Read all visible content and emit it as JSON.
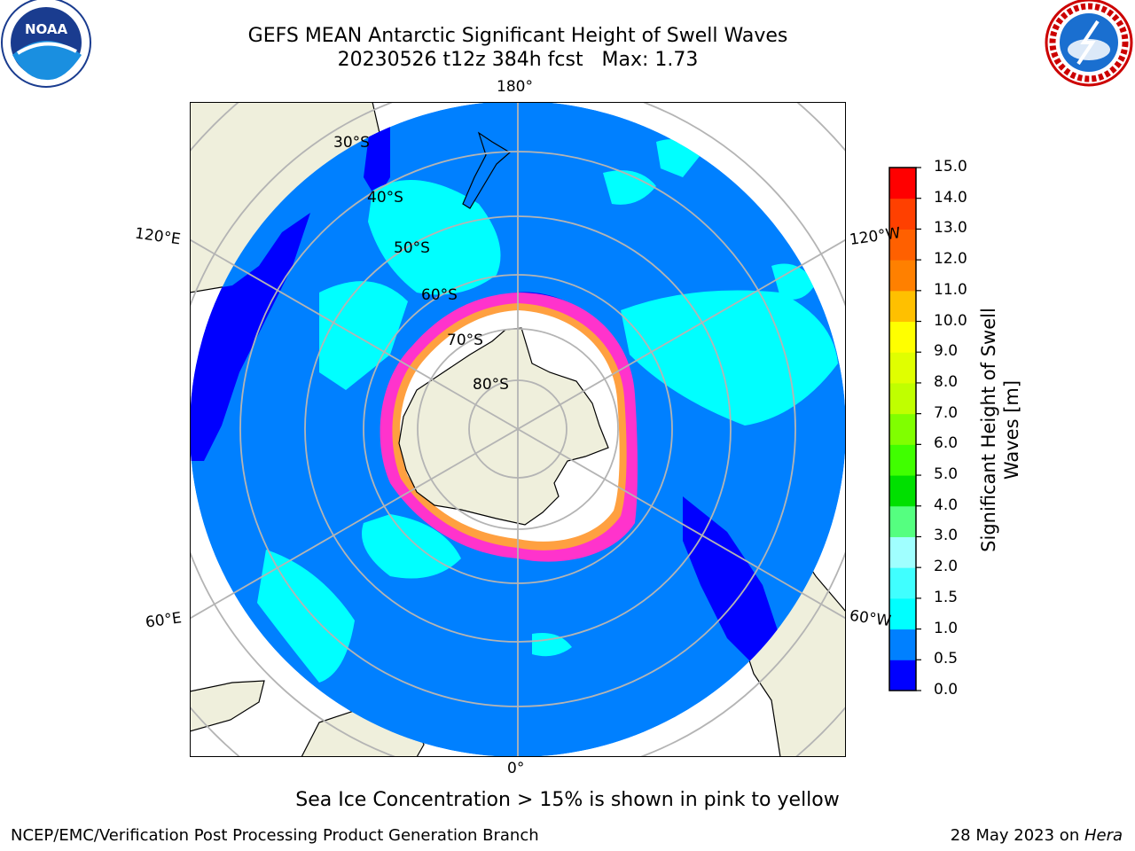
{
  "header": {
    "title_line1": "GEFS MEAN Antarctic Significant Height of Swell Waves",
    "title_line2": "20230526 t12z 384h fcst   Max: 1.73",
    "logo_left": "noaa-logo",
    "logo_right": "national-weather-service-logo"
  },
  "map": {
    "projection": "south-polar-stereographic",
    "lon_labels": {
      "top": "180°",
      "bottom": "0°",
      "upper_left": "120°E",
      "upper_right": "120°W",
      "lower_left": "60°E",
      "lower_right": "60°W"
    },
    "lat_labels": [
      "30°S",
      "40°S",
      "50°S",
      "60°S",
      "70°S",
      "80°S"
    ],
    "colors": {
      "land": "#efefdc",
      "ocean_base": "#0080ff",
      "low_swell": "#0000ff",
      "mid_swell": "#00ffff",
      "ice_edge": "#ff33cc",
      "ice_interior": "#ffffff",
      "grid": "#b4b4b4"
    }
  },
  "colorbar": {
    "title": "Significant Height of Swell Waves [m]",
    "ticks": [
      "0.0",
      "0.5",
      "1.0",
      "1.5",
      "2.0",
      "3.0",
      "4.0",
      "5.0",
      "6.0",
      "7.0",
      "8.0",
      "9.0",
      "10.0",
      "11.0",
      "12.0",
      "13.0",
      "14.0",
      "15.0"
    ],
    "colors": [
      "#0000ff",
      "#0080ff",
      "#00ffff",
      "#40ffff",
      "#a0ffff",
      "#55ff80",
      "#00e000",
      "#40ff00",
      "#80ff00",
      "#c0ff00",
      "#e0ff00",
      "#ffff00",
      "#ffc000",
      "#ff8000",
      "#ff6000",
      "#ff4000",
      "#ff0000"
    ]
  },
  "caption": "Sea Ice Concentration > 15% is shown in pink to yellow",
  "footer": {
    "left": "NCEP/EMC/Verification Post Processing Product Generation Branch",
    "right_prefix": "28 May 2023 on ",
    "right_host": "Hera"
  }
}
